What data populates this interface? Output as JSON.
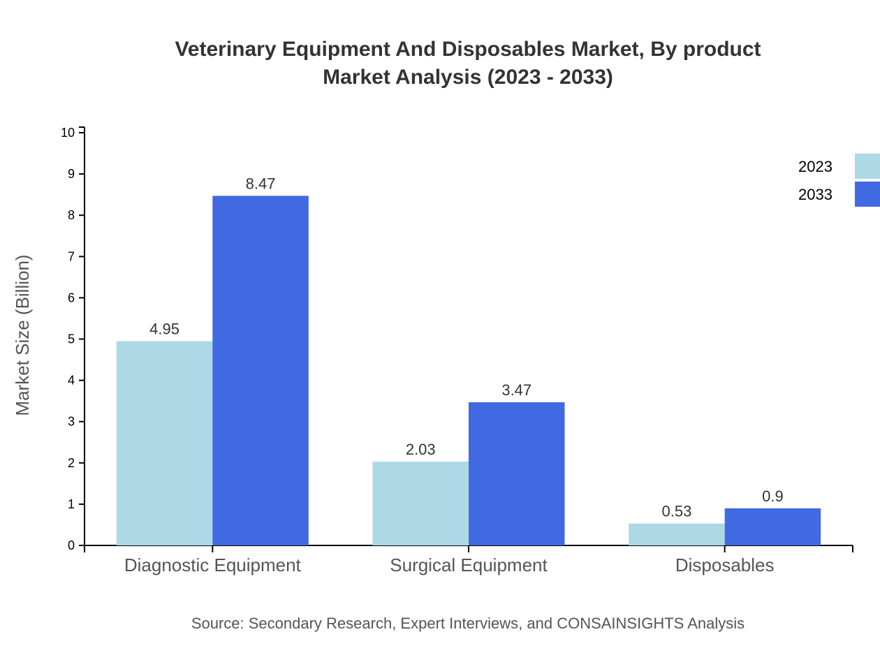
{
  "chart_data": {
    "type": "bar",
    "title": "Veterinary Equipment And Disposables Market, By product",
    "subtitle": "Market Analysis (2023 - 2033)",
    "xlabel": "",
    "ylabel": "Market Size (Billion)",
    "ylim": [
      0,
      10
    ],
    "yticks": [
      0,
      1,
      2,
      3,
      4,
      5,
      6,
      7,
      8,
      9,
      10
    ],
    "categories": [
      "Diagnostic Equipment",
      "Surgical Equipment",
      "Disposables"
    ],
    "series": [
      {
        "name": "2023",
        "color": "#add8e6",
        "values": [
          4.95,
          2.03,
          0.53
        ]
      },
      {
        "name": "2033",
        "color": "#4169e1",
        "values": [
          8.47,
          3.47,
          0.9
        ]
      }
    ],
    "grid": false,
    "legend": "top-right",
    "source": "Source: Secondary Research, Expert Interviews, and CONSAINSIGHTS Analysis"
  }
}
